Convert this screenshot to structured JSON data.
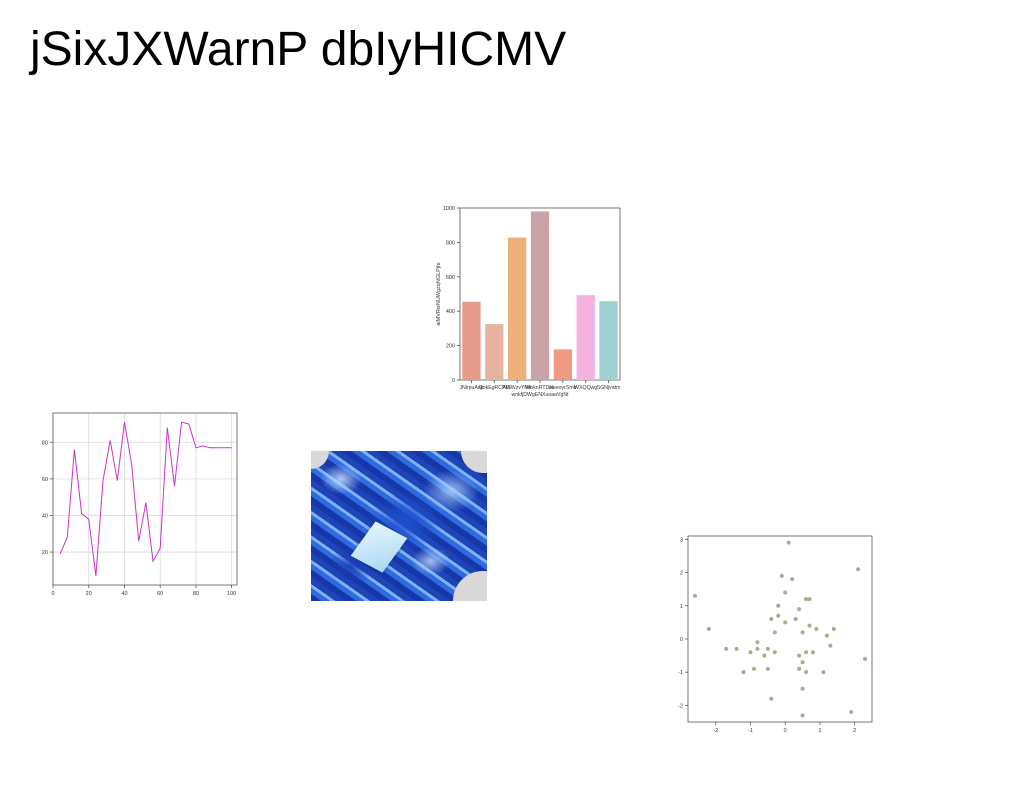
{
  "page": {
    "title": "jSixJXWarnP dbIyHICMV"
  },
  "photo": {
    "description_icon": "blue-bread-photo-icon"
  },
  "chart_data": [
    {
      "type": "bar",
      "categories": [
        "JNirpuAnk",
        "QokEgRCPM",
        "MSWzvYMk\nwnkfjDWgENXuoaaVgNt",
        "WoknRTDsk",
        "ikeeoyrSmb",
        "WXQQwg",
        "SGNjvatm"
      ],
      "category_labels_line1": [
        "JNirpuAnk",
        "QokEgRCPM",
        "MSWzvYMk",
        "WoknRTDsk",
        "ikeeoyrSmb",
        "WXQQwg",
        "SGNjvatm"
      ],
      "category_label_line2": "wnkfjDWgENXuoaaVgNt",
      "values": [
        455,
        325,
        828,
        980,
        178,
        493,
        458
      ],
      "colors": [
        "#e59a8c",
        "#e5b39f",
        "#ecb07a",
        "#c9a3a7",
        "#ee9a83",
        "#f3b3de",
        "#9fcfd1"
      ],
      "ylabel": "aiMVRwNUWgzqNGLPjfe",
      "ylim": [
        0,
        1000
      ],
      "yticks": [
        0,
        200,
        400,
        600,
        800,
        1000
      ],
      "grid": false
    },
    {
      "type": "line",
      "x": [
        4,
        8,
        12,
        16,
        20,
        24,
        28,
        32,
        36,
        40,
        44,
        48,
        52,
        56,
        60,
        64,
        68,
        72,
        76,
        80,
        84,
        88,
        92,
        96,
        100
      ],
      "values": [
        19,
        28,
        76,
        41,
        38,
        7,
        59,
        81,
        59,
        91,
        68,
        26,
        47,
        15,
        22,
        88,
        56,
        91,
        90,
        77,
        78,
        77,
        77,
        77,
        77
      ],
      "color": "#cc33cc",
      "xlim": [
        0,
        103
      ],
      "ylim": [
        2,
        96
      ],
      "xticks": [
        0,
        20,
        40,
        60,
        80,
        100
      ],
      "yticks": [
        20,
        40,
        60,
        80
      ],
      "grid": true
    },
    {
      "type": "scatter",
      "points": [
        [
          -2.6,
          1.3
        ],
        [
          -2.2,
          0.3
        ],
        [
          -1.7,
          -0.3
        ],
        [
          -1.4,
          -0.3
        ],
        [
          -1.2,
          -1.0
        ],
        [
          -1.0,
          -0.4
        ],
        [
          -0.9,
          -0.9
        ],
        [
          -0.8,
          -0.1
        ],
        [
          -0.8,
          -0.3
        ],
        [
          -0.6,
          -0.5
        ],
        [
          -0.5,
          -0.3
        ],
        [
          -0.5,
          -0.9
        ],
        [
          -0.4,
          -1.8
        ],
        [
          -0.4,
          0.6
        ],
        [
          -0.3,
          0.2
        ],
        [
          -0.3,
          -0.4
        ],
        [
          -0.2,
          1.0
        ],
        [
          -0.2,
          0.7
        ],
        [
          -0.1,
          1.9
        ],
        [
          0.0,
          0.5
        ],
        [
          0.0,
          1.4
        ],
        [
          0.1,
          2.9
        ],
        [
          0.2,
          1.8
        ],
        [
          0.3,
          0.6
        ],
        [
          0.4,
          0.9
        ],
        [
          0.4,
          -0.5
        ],
        [
          0.4,
          -0.9
        ],
        [
          0.5,
          -0.7
        ],
        [
          0.5,
          -1.5
        ],
        [
          0.5,
          -2.3
        ],
        [
          0.5,
          0.2
        ],
        [
          0.6,
          1.2
        ],
        [
          0.6,
          -0.4
        ],
        [
          0.6,
          -1.0
        ],
        [
          0.7,
          0.4
        ],
        [
          0.7,
          1.2
        ],
        [
          0.8,
          -0.4
        ],
        [
          0.9,
          0.3
        ],
        [
          1.1,
          -1.0
        ],
        [
          1.2,
          0.1
        ],
        [
          1.3,
          -0.2
        ],
        [
          1.4,
          0.3
        ],
        [
          1.9,
          -2.2
        ],
        [
          2.1,
          2.1
        ],
        [
          2.3,
          -0.6
        ]
      ],
      "color": "#9db38a",
      "xlim": [
        -2.8,
        2.5
      ],
      "ylim": [
        -2.5,
        3.1
      ],
      "xticks": [
        -2,
        -1,
        0,
        1,
        2
      ],
      "yticks": [
        -2,
        -1,
        0,
        1,
        2,
        3
      ],
      "grid": false
    }
  ]
}
